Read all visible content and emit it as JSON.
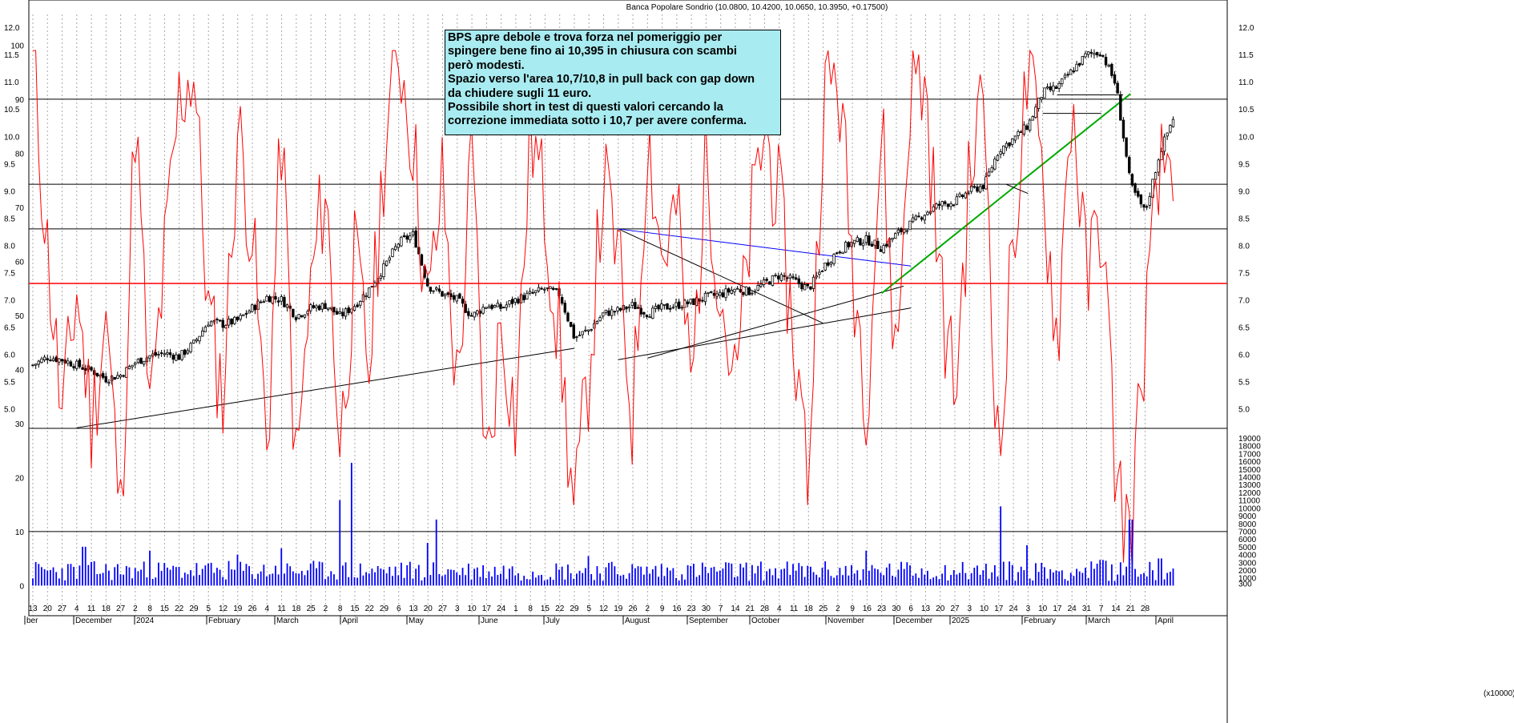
{
  "chart_data": {
    "type": "line",
    "title": "Banca Popolare Sondrio (10.0800, 10.4200, 10.0650, 10.3950, +0.17500)",
    "annotation": [
      "BPS apre debole e trova forza nel pomeriggio per",
      "spingere bene fino ai 10,395 in chiusura con scambi",
      "però modesti.",
      "Spazio verso l'area 10,7/10,8 in pull back con gap down",
      "da chiudere sugli 11 euro.",
      "Possibile short in test di questi valori cercando la",
      "correzione immediata sotto i 10,7 per avere conferma."
    ],
    "price_axis": {
      "ticks": [
        "5.0",
        "5.5",
        "6.0",
        "6.5",
        "7.0",
        "7.5",
        "8.0",
        "8.5",
        "9.0",
        "9.5",
        "10.0",
        "10.5",
        "11.0",
        "11.5",
        "12.0"
      ],
      "range": [
        4.55,
        12.35
      ]
    },
    "oscillator_axis": {
      "ticks": [
        "0",
        "10",
        "20",
        "30",
        "40",
        "50",
        "60",
        "70",
        "80",
        "90",
        "100"
      ],
      "range": [
        0,
        100
      ]
    },
    "volume_axis": {
      "ticks": [
        "300",
        "1000",
        "2000",
        "3000",
        "4000",
        "5000",
        "6000",
        "7000",
        "8000",
        "9000",
        "10000",
        "11000",
        "12000",
        "13000",
        "14000",
        "15000",
        "16000",
        "17000",
        "18000",
        "19000"
      ],
      "range": [
        0,
        19500
      ],
      "unit_label": "(x10000)"
    },
    "x_axis": {
      "day_ticks": [
        "13",
        "20",
        "27",
        "4",
        "11",
        "18",
        "27",
        "2",
        "8",
        "15",
        "22",
        "29",
        "5",
        "12",
        "19",
        "26",
        "4",
        "11",
        "18",
        "25",
        "2",
        "8",
        "15",
        "22",
        "29",
        "6",
        "13",
        "20",
        "27",
        "3",
        "10",
        "17",
        "24",
        "1",
        "8",
        "15",
        "22",
        "29",
        "5",
        "12",
        "19",
        "26",
        "2",
        "9",
        "16",
        "23",
        "30",
        "7",
        "14",
        "21",
        "28",
        "4",
        "11",
        "18",
        "25",
        "2",
        "9",
        "16",
        "23",
        "30",
        "6",
        "13",
        "20",
        "27",
        "3",
        "10",
        "17",
        "24",
        "3",
        "10",
        "17",
        "24",
        "31",
        "7",
        "14",
        "21",
        "28"
      ],
      "month_labels": [
        "ber",
        "December",
        "2024",
        "February",
        "March",
        "April",
        "May",
        "June",
        "July",
        "August",
        "September",
        "October",
        "November",
        "December",
        "2025",
        "February",
        "March",
        "April"
      ]
    },
    "horizontal_levels": [
      {
        "value": 9.12,
        "color": "#000000"
      },
      {
        "value": 8.3,
        "color": "#000000"
      },
      {
        "value": 7.3,
        "color": "#ff0000"
      }
    ],
    "trendlines": [
      {
        "from": [
          3,
          4.65
        ],
        "to": [
          37,
          6.11
        ],
        "color": "#000000"
      },
      {
        "from": [
          40,
          8.3
        ],
        "to": [
          54,
          6.57
        ],
        "color": "#000000"
      },
      {
        "from": [
          40,
          8.3
        ],
        "to": [
          60,
          7.62
        ],
        "color": "#0000ff"
      },
      {
        "from": [
          42,
          5.93
        ],
        "to": [
          59.5,
          7.25
        ],
        "color": "#000000"
      },
      {
        "from": [
          40,
          5.9
        ],
        "to": [
          60,
          6.85
        ],
        "color": "#000000"
      },
      {
        "from": [
          58,
          7.12
        ],
        "to": [
          75,
          10.78
        ],
        "color": "#00aa00"
      },
      {
        "from": [
          66.5,
          9.12
        ],
        "to": [
          68,
          8.95
        ],
        "color": "#000000"
      },
      {
        "from": [
          69,
          10.42
        ],
        "to": [
          73,
          10.42
        ],
        "color": "#000000"
      },
      {
        "from": [
          70,
          10.76
        ],
        "to": [
          74.5,
          10.76
        ],
        "color": "#000000"
      }
    ],
    "price_keypoints": [
      [
        0,
        5.8
      ],
      [
        1,
        5.95
      ],
      [
        2,
        5.9
      ],
      [
        3,
        5.8
      ],
      [
        4,
        5.7
      ],
      [
        5,
        5.55
      ],
      [
        6,
        5.62
      ],
      [
        7,
        5.85
      ],
      [
        8,
        5.97
      ],
      [
        9,
        6.02
      ],
      [
        10,
        5.95
      ],
      [
        11,
        6.2
      ],
      [
        12,
        6.6
      ],
      [
        13,
        6.55
      ],
      [
        14,
        6.62
      ],
      [
        15,
        6.85
      ],
      [
        16,
        7.05
      ],
      [
        17,
        7.0
      ],
      [
        18,
        6.7
      ],
      [
        19,
        6.85
      ],
      [
        20,
        6.9
      ],
      [
        21,
        6.7
      ],
      [
        22,
        6.9
      ],
      [
        23,
        7.2
      ],
      [
        24,
        7.6
      ],
      [
        25,
        8.05
      ],
      [
        26,
        8.2
      ],
      [
        27,
        7.25
      ],
      [
        28,
        7.1
      ],
      [
        29,
        7.0
      ],
      [
        30,
        6.7
      ],
      [
        31,
        6.9
      ],
      [
        32,
        6.85
      ],
      [
        33,
        7.0
      ],
      [
        34,
        7.1
      ],
      [
        35,
        7.2
      ],
      [
        36,
        7.1
      ],
      [
        37,
        6.3
      ],
      [
        38,
        6.45
      ],
      [
        39,
        6.75
      ],
      [
        40,
        6.8
      ],
      [
        41,
        6.9
      ],
      [
        42,
        6.75
      ],
      [
        43,
        6.85
      ],
      [
        44,
        6.9
      ],
      [
        45,
        6.95
      ],
      [
        46,
        7.05
      ],
      [
        47,
        7.1
      ],
      [
        48,
        7.2
      ],
      [
        49,
        7.15
      ],
      [
        50,
        7.3
      ],
      [
        51,
        7.45
      ],
      [
        52,
        7.35
      ],
      [
        53,
        7.2
      ],
      [
        54,
        7.6
      ],
      [
        55,
        7.9
      ],
      [
        56,
        8.05
      ],
      [
        57,
        8.1
      ],
      [
        58,
        7.95
      ],
      [
        59,
        8.2
      ],
      [
        60,
        8.4
      ],
      [
        61,
        8.6
      ],
      [
        62,
        8.75
      ],
      [
        63,
        8.8
      ],
      [
        64,
        9.0
      ],
      [
        65,
        9.1
      ],
      [
        66,
        9.75
      ],
      [
        67,
        9.95
      ],
      [
        68,
        10.2
      ],
      [
        69,
        10.8
      ],
      [
        70,
        10.9
      ],
      [
        71,
        11.2
      ],
      [
        72,
        11.5
      ],
      [
        73,
        11.55
      ],
      [
        74,
        10.95
      ],
      [
        75,
        9.1
      ],
      [
        76,
        8.6
      ],
      [
        77,
        9.7
      ],
      [
        78,
        10.4
      ]
    ],
    "oscillator_keypoints": [
      [
        0,
        98
      ],
      [
        1,
        62
      ],
      [
        2,
        30
      ],
      [
        3,
        55
      ],
      [
        4,
        30
      ],
      [
        5,
        50
      ],
      [
        6,
        12
      ],
      [
        7,
        88
      ],
      [
        8,
        30
      ],
      [
        9,
        60
      ],
      [
        10,
        90
      ],
      [
        11,
        96
      ],
      [
        12,
        50
      ],
      [
        13,
        35
      ],
      [
        14,
        85
      ],
      [
        15,
        65
      ],
      [
        16,
        25
      ],
      [
        17,
        85
      ],
      [
        18,
        20
      ],
      [
        19,
        55
      ],
      [
        20,
        75
      ],
      [
        21,
        25
      ],
      [
        22,
        60
      ],
      [
        23,
        40
      ],
      [
        24,
        80
      ],
      [
        25,
        100
      ],
      [
        26,
        82
      ],
      [
        27,
        50
      ],
      [
        28,
        75
      ],
      [
        29,
        35
      ],
      [
        30,
        80
      ],
      [
        31,
        20
      ],
      [
        32,
        50
      ],
      [
        33,
        30
      ],
      [
        34,
        85
      ],
      [
        35,
        70
      ],
      [
        36,
        45
      ],
      [
        37,
        12
      ],
      [
        38,
        40
      ],
      [
        39,
        75
      ],
      [
        40,
        60
      ],
      [
        41,
        30
      ],
      [
        42,
        85
      ],
      [
        43,
        60
      ],
      [
        44,
        70
      ],
      [
        45,
        35
      ],
      [
        46,
        80
      ],
      [
        47,
        55
      ],
      [
        48,
        35
      ],
      [
        49,
        65
      ],
      [
        50,
        85
      ],
      [
        51,
        70
      ],
      [
        52,
        45
      ],
      [
        53,
        20
      ],
      [
        54,
        90
      ],
      [
        55,
        95
      ],
      [
        56,
        60
      ],
      [
        57,
        35
      ],
      [
        58,
        85
      ],
      [
        59,
        40
      ],
      [
        60,
        95
      ],
      [
        61,
        92
      ],
      [
        62,
        55
      ],
      [
        63,
        35
      ],
      [
        64,
        75
      ],
      [
        65,
        92
      ],
      [
        66,
        20
      ],
      [
        67,
        65
      ],
      [
        68,
        95
      ],
      [
        69,
        75
      ],
      [
        70,
        45
      ],
      [
        71,
        92
      ],
      [
        72,
        55
      ],
      [
        73,
        70
      ],
      [
        74,
        20
      ],
      [
        75,
        8
      ],
      [
        76,
        48
      ],
      [
        77,
        75
      ],
      [
        78,
        82
      ]
    ],
    "volume_keypoints": [
      [
        3.5,
        5000
      ],
      [
        8,
        4500
      ],
      [
        14,
        4000
      ],
      [
        17,
        4800
      ],
      [
        21,
        11000
      ],
      [
        21.8,
        15800
      ],
      [
        27,
        5500
      ],
      [
        27.6,
        8500
      ],
      [
        38,
        3800
      ],
      [
        57,
        4500
      ],
      [
        66.1,
        10200
      ],
      [
        68,
        5200
      ],
      [
        73,
        3300
      ],
      [
        75,
        8500
      ],
      [
        77,
        3500
      ],
      [
        78,
        2200
      ]
    ],
    "grid": "dashed-vertical",
    "legend": "none"
  }
}
